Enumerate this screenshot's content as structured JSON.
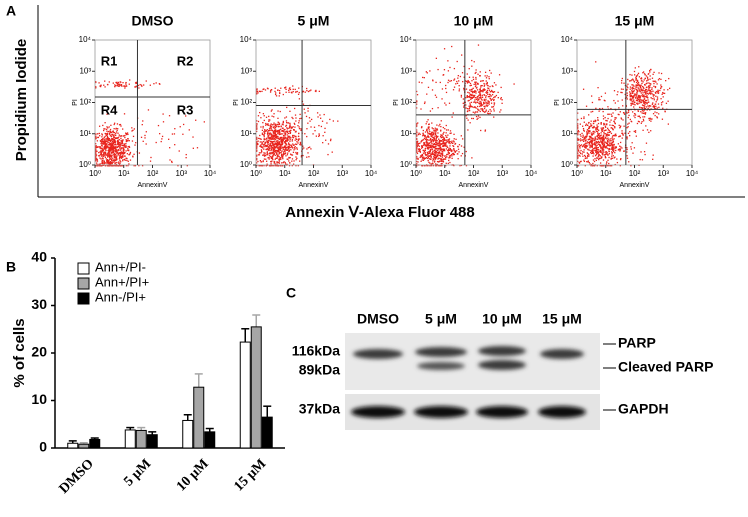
{
  "panel_labels": [
    "A",
    "B",
    "C"
  ],
  "chart_data": [
    {
      "type": "flow-quadrant",
      "ylabel_outer": "Propidium Iodide",
      "xlabel_outer": "Annexin Ⅴ-Alexa Fluor 488",
      "xlabel": "AnnexinV",
      "ylabel": "PI",
      "log_scale": true,
      "xlim": [
        1,
        10000
      ],
      "ylim": [
        1,
        10000
      ],
      "xticks": [
        {
          "value": 1,
          "label": "10⁰"
        },
        {
          "value": 10,
          "label": "10¹"
        },
        {
          "value": 100,
          "label": "10²"
        },
        {
          "value": 1000,
          "label": "10³"
        },
        {
          "value": 10000,
          "label": "10⁴"
        }
      ],
      "yticks": [
        {
          "value": 1,
          "label": "10⁰"
        },
        {
          "value": 10,
          "label": "10¹"
        },
        {
          "value": 100,
          "label": "10²"
        },
        {
          "value": 1000,
          "label": "10³"
        },
        {
          "value": 10000,
          "label": "10⁴"
        }
      ],
      "quadrant_labels": [
        "R1",
        "R2",
        "R3",
        "R4"
      ],
      "color": "#e8231c",
      "subplots": [
        {
          "title": "DMSO",
          "gate_x": 30,
          "gate_y": 150
        },
        {
          "title": "5 μM",
          "gate_x": 40,
          "gate_y": 80
        },
        {
          "title": "10 μM",
          "gate_x": 50,
          "gate_y": 40
        },
        {
          "title": "15 μM",
          "gate_x": 50,
          "gate_y": 60
        }
      ]
    },
    {
      "type": "bar",
      "ylabel": "% of cells",
      "categories": [
        "DMSO",
        "5 μM",
        "10 μM",
        "15 μM"
      ],
      "ylim": [
        0,
        40
      ],
      "yticks": [
        0,
        10,
        20,
        30,
        40
      ],
      "series": [
        {
          "name": "Ann+/PI-",
          "color": "#ffffff",
          "values": [
            1.0,
            3.8,
            5.8,
            22.3
          ],
          "errors": [
            0.5,
            0.5,
            1.2,
            2.8
          ]
        },
        {
          "name": "Ann+/PI+",
          "color": "#a6a6a6",
          "values": [
            0.8,
            3.7,
            12.8,
            25.5
          ],
          "errors": [
            0.3,
            0.6,
            2.8,
            2.5
          ]
        },
        {
          "name": "Ann-/PI+",
          "color": "#000000",
          "values": [
            1.8,
            2.8,
            3.4,
            6.5
          ],
          "errors": [
            0.3,
            0.6,
            0.7,
            2.3
          ]
        }
      ]
    }
  ],
  "blot": {
    "lanes": [
      "DMSO",
      "5 μM",
      "10 μM",
      "15 μM"
    ],
    "left_labels": [
      "116kDa",
      "89kDa",
      "37kDa"
    ],
    "right_labels": [
      "PARP",
      "Cleaved PARP",
      "GAPDH"
    ]
  }
}
